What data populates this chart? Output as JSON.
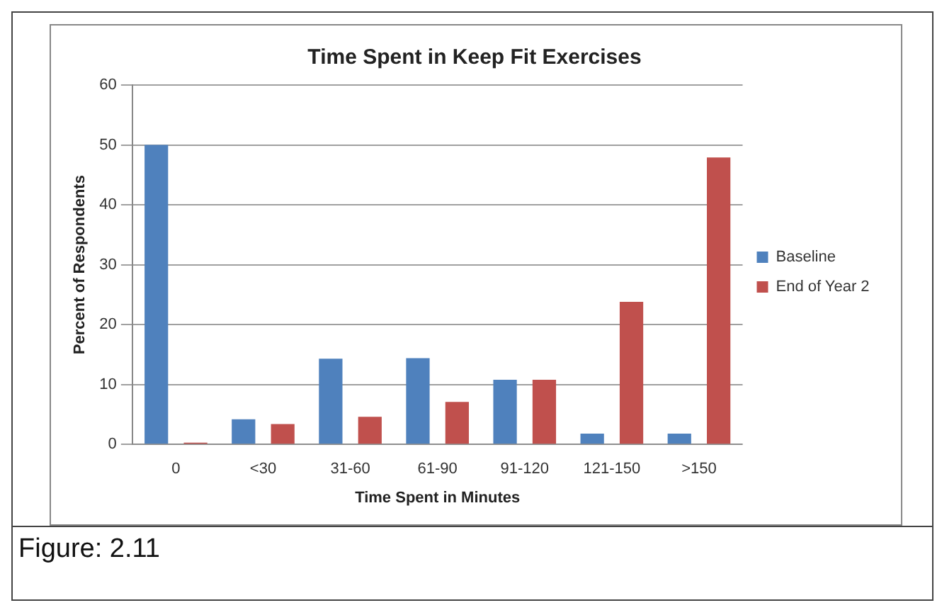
{
  "chart_data": {
    "type": "bar",
    "title": "Time Spent in Keep Fit Exercises",
    "xlabel": "Time Spent in Minutes",
    "ylabel": "Percent of Respondents",
    "categories": [
      "0",
      "<30",
      "31-60",
      "61-90",
      "91-120",
      "121-150",
      ">150"
    ],
    "series": [
      {
        "name": "Baseline",
        "color": "#4f81bd",
        "values": [
          50,
          4.2,
          14.3,
          14.4,
          10.8,
          1.8,
          1.8
        ]
      },
      {
        "name": "End of Year 2",
        "color": "#c0504d",
        "values": [
          0.3,
          3.4,
          4.6,
          7.1,
          10.8,
          23.8,
          47.9
        ]
      }
    ],
    "ylim": [
      0,
      60
    ],
    "yticks": [
      0,
      10,
      20,
      30,
      40,
      50,
      60
    ],
    "grid": "y",
    "legend": "right",
    "annotations": [
      "Figure: 2.11"
    ]
  }
}
